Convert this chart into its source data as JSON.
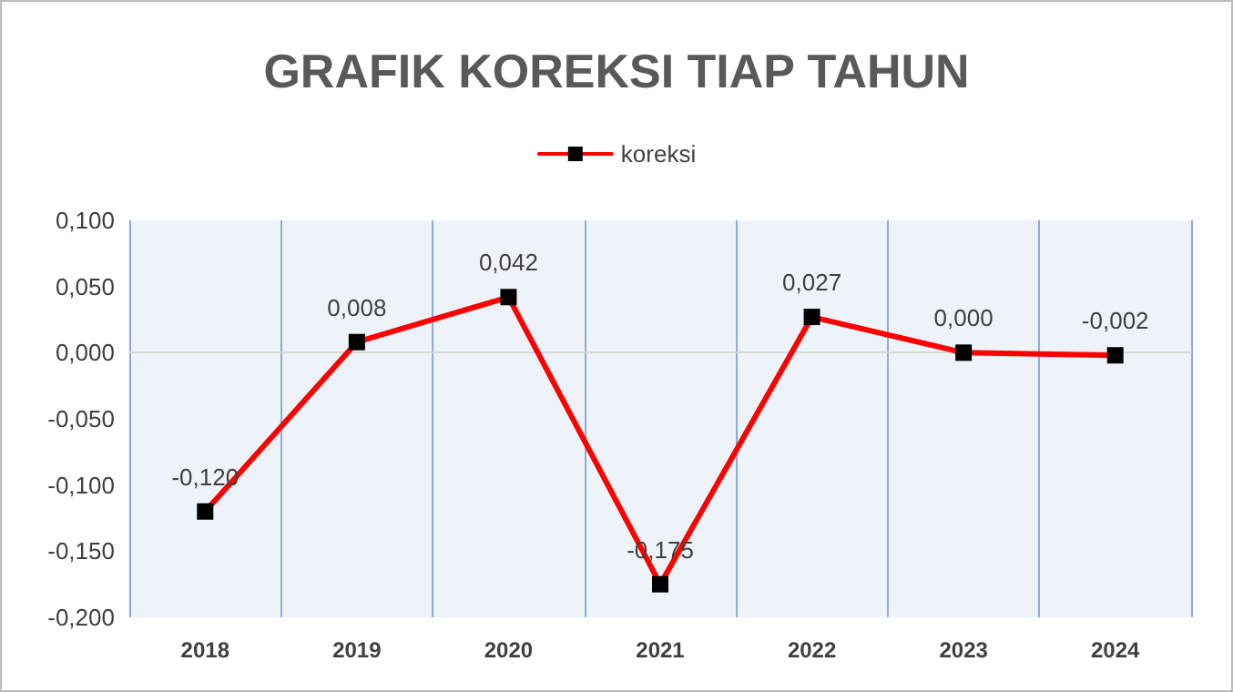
{
  "chart_data": {
    "type": "line",
    "title": "GRAFIK KOREKSI TIAP TAHUN",
    "categories": [
      "2018",
      "2019",
      "2020",
      "2021",
      "2022",
      "2023",
      "2024"
    ],
    "series": [
      {
        "name": "koreksi",
        "color": "#ff0000",
        "values": [
          -0.12,
          0.008,
          0.042,
          -0.175,
          0.027,
          0.0,
          -0.002
        ],
        "value_labels": [
          "-0,120",
          "0,008",
          "0,042",
          "-0,175",
          "0,027",
          "0,000",
          "-0,002"
        ]
      }
    ],
    "ylim": [
      -0.2,
      0.1
    ],
    "yticks": [
      {
        "value": -0.2,
        "label": "-0,200"
      },
      {
        "value": -0.15,
        "label": "-0,150"
      },
      {
        "value": -0.1,
        "label": "-0,100"
      },
      {
        "value": -0.05,
        "label": "-0,050"
      },
      {
        "value": 0,
        "label": "0,000"
      },
      {
        "value": 0.05,
        "label": "0,050"
      },
      {
        "value": 0.1,
        "label": "0,100"
      }
    ],
    "grid": "x",
    "legend": "top",
    "marker": "square",
    "line_style": "solid"
  }
}
